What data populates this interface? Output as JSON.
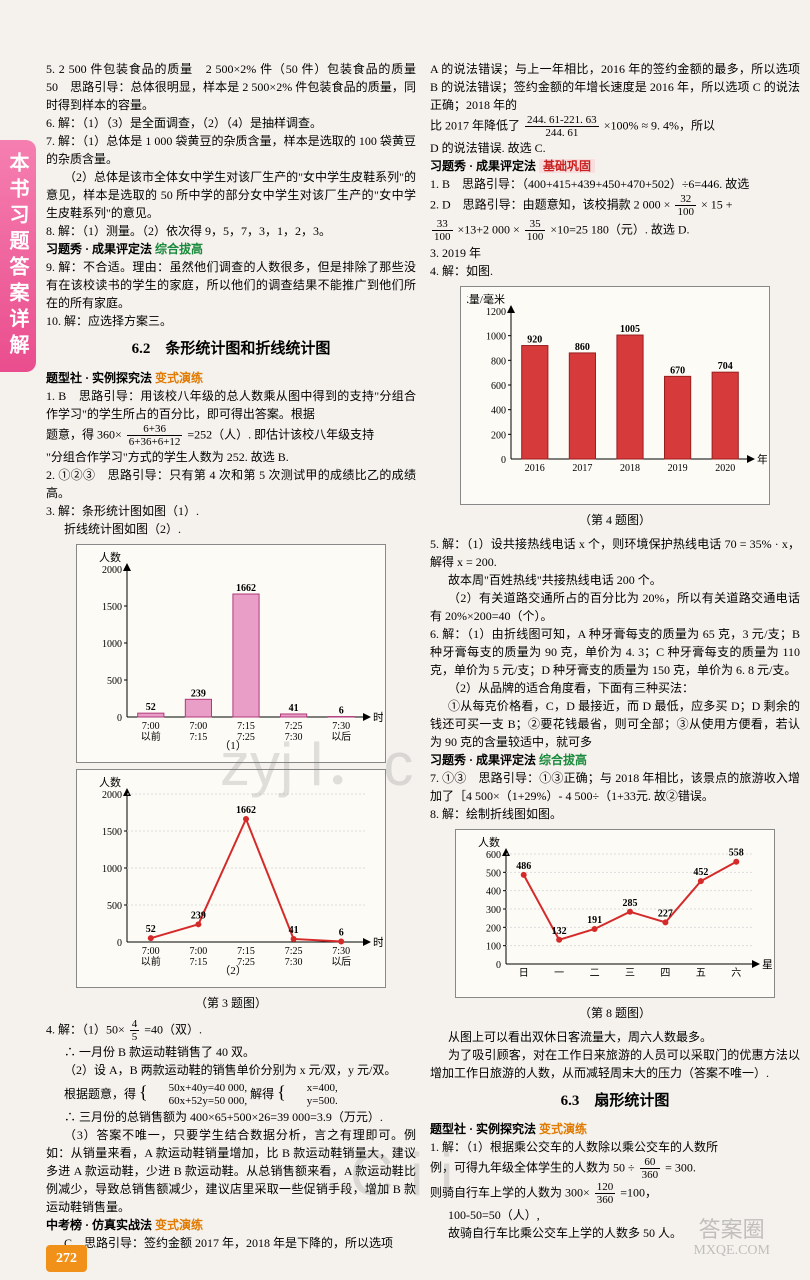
{
  "sideTab": "本书习题答案详解",
  "pageNumber": "272",
  "watermark1": "zyj l．c",
  "watermark2": "C i i",
  "stamp": {
    "l1": "答案圈",
    "l2": "MXQE.COM"
  },
  "leftCol": {
    "p5": "5. 2 500 件包装食品的质量　2 500×2% 件（50 件）包装食品的质量　50　思路引导：总体很明显，样本是 2 500×2% 件包装食品的质量，同时得到样本的容量。",
    "p6": "6. 解：（1）（3）是全面调查，（2）（4）是抽样调查。",
    "p7a": "7. 解：（1）总体是 1 000 袋黄豆的杂质含量，样本是选取的 100 袋黄豆的杂质含量。",
    "p7b": "（2）总体是该市全体女中学生对该厂生产的\"女中学生皮鞋系列\"的意见，样本是选取的 50 所中学的部分女中学生对该厂生产的\"女中学生皮鞋系列\"的意见。",
    "p8": "8. 解：（1）测量。（2）依次得 9，5，7，3，1，2，3。",
    "xts1Lbl": "习题秀 · 成果评定法",
    "xts1Tag": "综合拔高",
    "p9": "9. 解：不合适。理由：虽然他们调查的人数很多，但是排除了那些没有在该校读书的学生的家庭，所以他们的调查结果不能推广到他们所在的所有家庭。",
    "p10": "10. 解：应选择方案三。",
    "sec62": "6.2　条形统计图和折线统计图",
    "txs1Lbl": "题型社 · 实例探究法",
    "txs1Tag": "变式演练",
    "q1a": "1. B　思路引导：用该校八年级的总人数乘从图中得到的支持\"分组合作学习\"的学生所占的百分比，即可得出答案。根据",
    "q1b": "题意，得 360×",
    "q1fracN": "6+36",
    "q1fracD": "6+36+6+12",
    "q1c": "=252（人）. 即估计该校八年级支持",
    "q1d": "\"分组合作学习\"方式的学生人数为 252. 故选 B.",
    "q2": "2. ①②③　思路引导：只有第 4 次和第 5 次测试甲的成绩比乙的成绩高。",
    "q3a": "3. 解：条形统计图如图（1）.",
    "q3b": "折线统计图如图（2）.",
    "chart1": {
      "ylabel": "人数",
      "xlabel": "时间",
      "ymax": 2000,
      "yticks": [
        500,
        1000,
        1500,
        2000
      ],
      "cats": [
        "7:00\n以前",
        "7:00\n7:15",
        "7:15\n7:25",
        "7:25\n7:30",
        "7:30\n以后"
      ],
      "vals": [
        52,
        239,
        1662,
        41,
        6
      ],
      "barColor": "#e89ec7",
      "barBorder": "#b03a7a",
      "sub": "（1）"
    },
    "chart2": {
      "ylabel": "人数",
      "xlabel": "时间",
      "ymax": 2000,
      "yticks": [
        500,
        1000,
        1500,
        2000
      ],
      "cats": [
        "7:00\n以前",
        "7:00\n7:15",
        "7:15\n7:25",
        "7:25\n7:30",
        "7:30\n以后"
      ],
      "vals": [
        52,
        239,
        1662,
        41,
        6
      ],
      "lineColor": "#d42a2a",
      "sub": "（2）"
    },
    "cap3": "（第 3 题图）",
    "q4a": "4. 解：（1）50×",
    "q4fracN": "4",
    "q4fracD": "5",
    "q4b": "=40（双）.",
    "q4c": "∴ 一月份 B 款运动鞋销售了 40 双。",
    "q4d": "（2）设 A，B 两款运动鞋的销售单价分别为 x 元/双，y 元/双。",
    "q4e": "根据题意，得",
    "q4sys1": "50x+40y=40 000,",
    "q4sys2": "60x+52y=50 000,",
    "q4sol1": "x=400,",
    "q4sol2": "y=500.",
    "q4mid": "解得",
    "q4f": "∴ 三月份的总销售额为 400×65+500×26=39 000=3.9（万元）.",
    "q4g": "（3）答案不唯一，只要学生结合数据分析，言之有理即可。例如：从销量来看，A 款运动鞋销量增加，比 B 款运动鞋销量大，建议多进 A 款运动鞋，少进 B 款运动鞋。从总销售额来看，A 款运动鞋比例减少，导致总销售额减少，建议店里采取一些促销手段，增加 B 款运动鞋销售量。",
    "zkbLbl": "中考榜 · 仿真实战法",
    "zkbTag": "变式演练",
    "zkbC": "C　思路引导：签约金额 2017 年，2018 年是下降的，所以选项"
  },
  "rightCol": {
    "pA": "A 的说法错误；与上一年相比，2016 年的签约金额的最多，所以选项 B 的说法错误；签约金额的年增长速度是 2016 年，所以选项 C 的说法正确；2018 年的",
    "pBa": "比 2017 年降低了",
    "pBfracN": "244. 61-221. 63",
    "pBfracD": "244. 61",
    "pBb": "×100% ≈ 9. 4%，所以",
    "pBc": "D 的说法错误. 故选 C.",
    "xts2Lbl": "习题秀 · 成果评定法",
    "xts2Tag": "基础巩固",
    "r1": "1. B　思路引导：（400+415+439+450+470+502）÷6=446. 故选",
    "r2a": "2. D　思路引导：由题意知，该校捐款 2 000 ×",
    "r2f1N": "32",
    "r2f1D": "100",
    "r2b": "× 15 +",
    "r2f2N": "33",
    "r2f2D": "100",
    "r2c": "×13+2 000 ×",
    "r2f3N": "35",
    "r2f3D": "100",
    "r2d": "×10=25 180（元）. 故选 D.",
    "r3": "3. 2019 年",
    "r4": "4. 解：如图.",
    "chart4": {
      "ylabel": "降水量/毫米",
      "xlabel": "年份",
      "ymax": 1200,
      "yticks": [
        200,
        400,
        600,
        800,
        1000,
        1200
      ],
      "cats": [
        "2016",
        "2017",
        "2018",
        "2019",
        "2020"
      ],
      "vals": [
        920,
        860,
        1005,
        670,
        704
      ],
      "barColor": "#d63a3a",
      "barBorder": "#9a1f1f"
    },
    "cap4": "（第 4 题图）",
    "r5a": "5. 解：（1）设共接热线电话 x 个，则环境保护热线电话 70 = 35% · x，解得 x = 200.",
    "r5b": "故本周\"百姓热线\"共接热线电话 200 个。",
    "r5c": "（2）有关道路交通所占的百分比为 20%，所以有关道路交通电话有 20%×200=40（个）。",
    "r6a": "6. 解：（1）由折线图可知，A 种牙膏每支的质量为 65 克，3 元/支；B 种牙膏每支的质量为 90 克，单价为 4. 3；C 种牙膏每支的质量为 110 克，单价为 5 元/支；D 种牙膏支的质量为 150 克，单价为 6. 8 元/支。",
    "r6b": "（2）从品牌的适合角度看，下面有三种买法：",
    "r6c": "①从每克价格看，C，D 最接近，而 D 最低，应多买 D；D 剩余的钱还可买一支 B；②要花钱最省，则可全部；③从使用方便看，若认为 90 克的含量较适中，就可多",
    "xts3Lbl": "习题秀 · 成果评定法",
    "xts3Tag": "综合拔高",
    "r7": "7. ①③　思路引导：①③正确；与 2018 年相比，该景点的旅游收入增加了［4 500×（1+29%）- 4 500÷（1+33元. 故②错误。",
    "r8": "8. 解：绘制折线图如图。",
    "chart8": {
      "ylabel": "人数",
      "xlabel": "星期",
      "ymax": 600,
      "yticks": [
        100,
        200,
        300,
        400,
        500,
        600
      ],
      "cats": [
        "日",
        "一",
        "二",
        "三",
        "四",
        "五",
        "六"
      ],
      "vals": [
        486,
        132,
        191,
        285,
        227,
        452,
        558
      ],
      "lineColor": "#d42a2a"
    },
    "cap8": "（第 8 题图）",
    "r8b": "从图上可以看出双休日客流量大，周六人数最多。",
    "r8c": "为了吸引顾客，对在工作日来旅游的人员可以采取门的优惠方法以增加工作日旅游的人数，从而减轻周末大的压力（答案不唯一）.",
    "sec63": "6.3　扇形统计图",
    "txs2Lbl": "题型社 · 实例探究法",
    "txs2Tag": "变式演练",
    "t1a": "1. 解：（1）根据乘公交车的人数除以乘公交车的人数所",
    "t1b": "例，可得九年级全体学生的人数为 50 ÷",
    "t1f1N": "60",
    "t1f1D": "360",
    "t1c": "= 300.",
    "t1d": "则骑自行车上学的人数为 300×",
    "t1f2N": "120",
    "t1f2D": "360",
    "t1e": "=100，",
    "t1f": "100-50=50（人）,",
    "t1g": "故骑自行车比乘公交车上学的人数多 50 人。"
  }
}
